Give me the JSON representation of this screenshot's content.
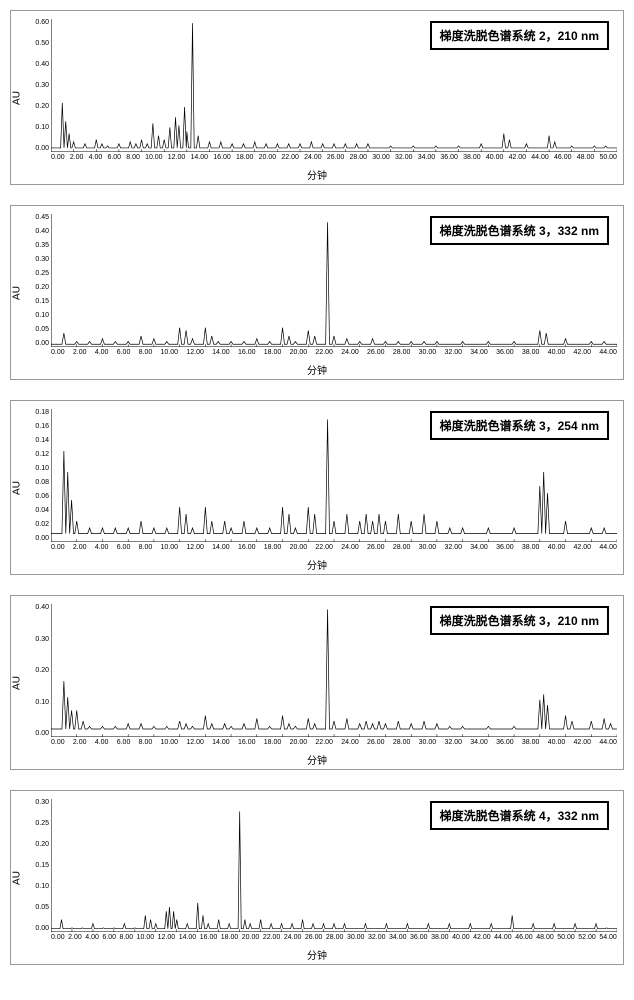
{
  "panels": [
    {
      "legend": "梯度洗脱色谱系统 2，210 nm",
      "y_label": "AU",
      "x_label": "分钟",
      "ylim": [
        0,
        0.65
      ],
      "yticks": [
        "0.00",
        "0.10",
        "0.20",
        "0.30",
        "0.40",
        "0.50",
        "0.60"
      ],
      "xlim": [
        0,
        50
      ],
      "xticks": [
        "0.00",
        "2.00",
        "4.00",
        "6.00",
        "8.00",
        "10.00",
        "12.00",
        "14.00",
        "16.00",
        "18.00",
        "20.00",
        "22.00",
        "24.00",
        "26.00",
        "28.00",
        "30.00",
        "32.00",
        "34.00",
        "36.00",
        "38.00",
        "40.00",
        "42.00",
        "44.00",
        "46.00",
        "48.00",
        "50.00"
      ],
      "peaks": [
        {
          "x": 1.0,
          "h": 0.24
        },
        {
          "x": 1.3,
          "h": 0.15
        },
        {
          "x": 1.6,
          "h": 0.09
        },
        {
          "x": 2.0,
          "h": 0.05
        },
        {
          "x": 3.0,
          "h": 0.04
        },
        {
          "x": 4.0,
          "h": 0.06
        },
        {
          "x": 4.5,
          "h": 0.04
        },
        {
          "x": 5.0,
          "h": 0.03
        },
        {
          "x": 6.0,
          "h": 0.04
        },
        {
          "x": 7.0,
          "h": 0.05
        },
        {
          "x": 7.5,
          "h": 0.04
        },
        {
          "x": 8.0,
          "h": 0.06
        },
        {
          "x": 8.5,
          "h": 0.04
        },
        {
          "x": 9.0,
          "h": 0.14
        },
        {
          "x": 9.5,
          "h": 0.08
        },
        {
          "x": 10.0,
          "h": 0.06
        },
        {
          "x": 10.5,
          "h": 0.12
        },
        {
          "x": 11.0,
          "h": 0.17
        },
        {
          "x": 11.3,
          "h": 0.13
        },
        {
          "x": 11.8,
          "h": 0.22
        },
        {
          "x": 12.0,
          "h": 0.1
        },
        {
          "x": 12.5,
          "h": 0.63
        },
        {
          "x": 13.0,
          "h": 0.08
        },
        {
          "x": 14.0,
          "h": 0.05
        },
        {
          "x": 15.0,
          "h": 0.05
        },
        {
          "x": 16.0,
          "h": 0.04
        },
        {
          "x": 17.0,
          "h": 0.04
        },
        {
          "x": 18.0,
          "h": 0.05
        },
        {
          "x": 19.0,
          "h": 0.04
        },
        {
          "x": 20.0,
          "h": 0.04
        },
        {
          "x": 21.0,
          "h": 0.04
        },
        {
          "x": 22.0,
          "h": 0.04
        },
        {
          "x": 23.0,
          "h": 0.05
        },
        {
          "x": 24.0,
          "h": 0.04
        },
        {
          "x": 25.0,
          "h": 0.04
        },
        {
          "x": 26.0,
          "h": 0.04
        },
        {
          "x": 27.0,
          "h": 0.04
        },
        {
          "x": 28.0,
          "h": 0.04
        },
        {
          "x": 30.0,
          "h": 0.03
        },
        {
          "x": 32.0,
          "h": 0.03
        },
        {
          "x": 34.0,
          "h": 0.03
        },
        {
          "x": 36.0,
          "h": 0.03
        },
        {
          "x": 38.0,
          "h": 0.04
        },
        {
          "x": 40.0,
          "h": 0.09
        },
        {
          "x": 40.5,
          "h": 0.06
        },
        {
          "x": 42.0,
          "h": 0.04
        },
        {
          "x": 44.0,
          "h": 0.08
        },
        {
          "x": 44.5,
          "h": 0.05
        },
        {
          "x": 46.0,
          "h": 0.03
        },
        {
          "x": 48.0,
          "h": 0.03
        },
        {
          "x": 49.0,
          "h": 0.03
        }
      ],
      "baseline": 0.02
    },
    {
      "legend": "梯度洗脱色谱系统 3，332 nm",
      "y_label": "AU",
      "x_label": "分钟",
      "ylim": [
        0,
        0.48
      ],
      "yticks": [
        "0.00",
        "0.05",
        "0.10",
        "0.15",
        "0.20",
        "0.25",
        "0.30",
        "0.35",
        "0.40",
        "0.45"
      ],
      "xlim": [
        0,
        44
      ],
      "xticks": [
        "0.00",
        "2.00",
        "4.00",
        "6.00",
        "8.00",
        "10.00",
        "12.00",
        "14.00",
        "16.00",
        "18.00",
        "20.00",
        "22.00",
        "24.00",
        "26.00",
        "28.00",
        "30.00",
        "32.00",
        "34.00",
        "36.00",
        "38.00",
        "40.00",
        "42.00",
        "44.00"
      ],
      "peaks": [
        {
          "x": 1.0,
          "h": 0.05
        },
        {
          "x": 2.0,
          "h": 0.02
        },
        {
          "x": 3.0,
          "h": 0.02
        },
        {
          "x": 4.0,
          "h": 0.03
        },
        {
          "x": 5.0,
          "h": 0.02
        },
        {
          "x": 6.0,
          "h": 0.02
        },
        {
          "x": 7.0,
          "h": 0.04
        },
        {
          "x": 8.0,
          "h": 0.03
        },
        {
          "x": 9.0,
          "h": 0.02
        },
        {
          "x": 10.0,
          "h": 0.07
        },
        {
          "x": 10.5,
          "h": 0.06
        },
        {
          "x": 11.0,
          "h": 0.03
        },
        {
          "x": 12.0,
          "h": 0.07
        },
        {
          "x": 12.5,
          "h": 0.04
        },
        {
          "x": 13.0,
          "h": 0.02
        },
        {
          "x": 14.0,
          "h": 0.02
        },
        {
          "x": 15.0,
          "h": 0.02
        },
        {
          "x": 16.0,
          "h": 0.03
        },
        {
          "x": 17.0,
          "h": 0.02
        },
        {
          "x": 18.0,
          "h": 0.07
        },
        {
          "x": 18.5,
          "h": 0.04
        },
        {
          "x": 19.0,
          "h": 0.02
        },
        {
          "x": 20.0,
          "h": 0.06
        },
        {
          "x": 20.5,
          "h": 0.04
        },
        {
          "x": 21.5,
          "h": 0.45
        },
        {
          "x": 22.0,
          "h": 0.04
        },
        {
          "x": 23.0,
          "h": 0.03
        },
        {
          "x": 24.0,
          "h": 0.02
        },
        {
          "x": 25.0,
          "h": 0.03
        },
        {
          "x": 26.0,
          "h": 0.02
        },
        {
          "x": 27.0,
          "h": 0.02
        },
        {
          "x": 28.0,
          "h": 0.02
        },
        {
          "x": 29.0,
          "h": 0.02
        },
        {
          "x": 30.0,
          "h": 0.02
        },
        {
          "x": 32.0,
          "h": 0.02
        },
        {
          "x": 34.0,
          "h": 0.02
        },
        {
          "x": 36.0,
          "h": 0.02
        },
        {
          "x": 38.0,
          "h": 0.06
        },
        {
          "x": 38.5,
          "h": 0.05
        },
        {
          "x": 40.0,
          "h": 0.03
        },
        {
          "x": 42.0,
          "h": 0.02
        },
        {
          "x": 43.0,
          "h": 0.02
        }
      ],
      "baseline": 0.01
    },
    {
      "legend": "梯度洗脱色谱系统 3，254 nm",
      "y_label": "AU",
      "x_label": "分钟",
      "ylim": [
        0,
        0.19
      ],
      "yticks": [
        "0.00",
        "0.02",
        "0.04",
        "0.06",
        "0.08",
        "0.10",
        "0.12",
        "0.14",
        "0.16",
        "0.18"
      ],
      "xlim": [
        0,
        44
      ],
      "xticks": [
        "0.00",
        "2.00",
        "4.00",
        "6.00",
        "8.00",
        "10.00",
        "12.00",
        "14.00",
        "16.00",
        "18.00",
        "20.00",
        "22.00",
        "24.00",
        "26.00",
        "28.00",
        "30.00",
        "32.00",
        "34.00",
        "36.00",
        "38.00",
        "40.00",
        "42.00",
        "44.00"
      ],
      "peaks": [
        {
          "x": 1.0,
          "h": 0.13
        },
        {
          "x": 1.3,
          "h": 0.1
        },
        {
          "x": 1.6,
          "h": 0.06
        },
        {
          "x": 2.0,
          "h": 0.03
        },
        {
          "x": 3.0,
          "h": 0.02
        },
        {
          "x": 4.0,
          "h": 0.02
        },
        {
          "x": 5.0,
          "h": 0.02
        },
        {
          "x": 6.0,
          "h": 0.02
        },
        {
          "x": 7.0,
          "h": 0.03
        },
        {
          "x": 8.0,
          "h": 0.02
        },
        {
          "x": 9.0,
          "h": 0.02
        },
        {
          "x": 10.0,
          "h": 0.05
        },
        {
          "x": 10.5,
          "h": 0.04
        },
        {
          "x": 11.0,
          "h": 0.02
        },
        {
          "x": 12.0,
          "h": 0.05
        },
        {
          "x": 12.5,
          "h": 0.03
        },
        {
          "x": 13.5,
          "h": 0.03
        },
        {
          "x": 14.0,
          "h": 0.02
        },
        {
          "x": 15.0,
          "h": 0.03
        },
        {
          "x": 16.0,
          "h": 0.02
        },
        {
          "x": 17.0,
          "h": 0.02
        },
        {
          "x": 18.0,
          "h": 0.05
        },
        {
          "x": 18.5,
          "h": 0.04
        },
        {
          "x": 19.0,
          "h": 0.02
        },
        {
          "x": 20.0,
          "h": 0.05
        },
        {
          "x": 20.5,
          "h": 0.04
        },
        {
          "x": 21.5,
          "h": 0.175
        },
        {
          "x": 22.0,
          "h": 0.03
        },
        {
          "x": 23.0,
          "h": 0.04
        },
        {
          "x": 24.0,
          "h": 0.03
        },
        {
          "x": 24.5,
          "h": 0.04
        },
        {
          "x": 25.0,
          "h": 0.03
        },
        {
          "x": 25.5,
          "h": 0.04
        },
        {
          "x": 26.0,
          "h": 0.03
        },
        {
          "x": 27.0,
          "h": 0.04
        },
        {
          "x": 28.0,
          "h": 0.03
        },
        {
          "x": 29.0,
          "h": 0.04
        },
        {
          "x": 30.0,
          "h": 0.03
        },
        {
          "x": 31.0,
          "h": 0.02
        },
        {
          "x": 32.0,
          "h": 0.02
        },
        {
          "x": 34.0,
          "h": 0.02
        },
        {
          "x": 36.0,
          "h": 0.02
        },
        {
          "x": 38.0,
          "h": 0.08
        },
        {
          "x": 38.3,
          "h": 0.1
        },
        {
          "x": 38.6,
          "h": 0.07
        },
        {
          "x": 40.0,
          "h": 0.03
        },
        {
          "x": 42.0,
          "h": 0.02
        },
        {
          "x": 43.0,
          "h": 0.02
        }
      ],
      "baseline": 0.012
    },
    {
      "legend": "梯度洗脱色谱系统 3，210 nm",
      "y_label": "AU",
      "x_label": "分钟",
      "ylim": [
        0,
        0.5
      ],
      "yticks": [
        "0.00",
        "0.10",
        "0.20",
        "0.30",
        "0.40"
      ],
      "xlim": [
        0,
        44
      ],
      "xticks": [
        "0.00",
        "2.00",
        "4.00",
        "6.00",
        "8.00",
        "10.00",
        "12.00",
        "14.00",
        "16.00",
        "18.00",
        "20.00",
        "22.00",
        "24.00",
        "26.00",
        "28.00",
        "30.00",
        "32.00",
        "34.00",
        "36.00",
        "38.00",
        "40.00",
        "42.00",
        "44.00"
      ],
      "peaks": [
        {
          "x": 1.0,
          "h": 0.21
        },
        {
          "x": 1.3,
          "h": 0.15
        },
        {
          "x": 1.6,
          "h": 0.1
        },
        {
          "x": 2.0,
          "h": 0.1
        },
        {
          "x": 2.5,
          "h": 0.06
        },
        {
          "x": 3.0,
          "h": 0.04
        },
        {
          "x": 4.0,
          "h": 0.04
        },
        {
          "x": 5.0,
          "h": 0.04
        },
        {
          "x": 6.0,
          "h": 0.05
        },
        {
          "x": 7.0,
          "h": 0.05
        },
        {
          "x": 8.0,
          "h": 0.04
        },
        {
          "x": 9.0,
          "h": 0.04
        },
        {
          "x": 10.0,
          "h": 0.06
        },
        {
          "x": 10.5,
          "h": 0.05
        },
        {
          "x": 11.0,
          "h": 0.04
        },
        {
          "x": 12.0,
          "h": 0.08
        },
        {
          "x": 12.5,
          "h": 0.05
        },
        {
          "x": 13.5,
          "h": 0.05
        },
        {
          "x": 14.0,
          "h": 0.04
        },
        {
          "x": 15.0,
          "h": 0.05
        },
        {
          "x": 16.0,
          "h": 0.07
        },
        {
          "x": 17.0,
          "h": 0.04
        },
        {
          "x": 18.0,
          "h": 0.08
        },
        {
          "x": 18.5,
          "h": 0.05
        },
        {
          "x": 19.0,
          "h": 0.04
        },
        {
          "x": 20.0,
          "h": 0.07
        },
        {
          "x": 20.5,
          "h": 0.05
        },
        {
          "x": 21.5,
          "h": 0.48
        },
        {
          "x": 22.0,
          "h": 0.06
        },
        {
          "x": 23.0,
          "h": 0.07
        },
        {
          "x": 24.0,
          "h": 0.05
        },
        {
          "x": 24.5,
          "h": 0.06
        },
        {
          "x": 25.0,
          "h": 0.05
        },
        {
          "x": 25.5,
          "h": 0.06
        },
        {
          "x": 26.0,
          "h": 0.05
        },
        {
          "x": 27.0,
          "h": 0.06
        },
        {
          "x": 28.0,
          "h": 0.05
        },
        {
          "x": 29.0,
          "h": 0.06
        },
        {
          "x": 30.0,
          "h": 0.05
        },
        {
          "x": 31.0,
          "h": 0.04
        },
        {
          "x": 32.0,
          "h": 0.04
        },
        {
          "x": 34.0,
          "h": 0.04
        },
        {
          "x": 36.0,
          "h": 0.04
        },
        {
          "x": 38.0,
          "h": 0.14
        },
        {
          "x": 38.3,
          "h": 0.16
        },
        {
          "x": 38.6,
          "h": 0.12
        },
        {
          "x": 40.0,
          "h": 0.08
        },
        {
          "x": 40.5,
          "h": 0.06
        },
        {
          "x": 42.0,
          "h": 0.06
        },
        {
          "x": 43.0,
          "h": 0.07
        },
        {
          "x": 43.5,
          "h": 0.05
        }
      ],
      "baseline": 0.03
    },
    {
      "legend": "梯度洗脱色谱系统 4，332 nm",
      "y_label": "AU",
      "x_label": "分钟",
      "ylim": [
        0,
        0.32
      ],
      "yticks": [
        "0.00",
        "0.05",
        "0.10",
        "0.15",
        "0.20",
        "0.25",
        "0.30"
      ],
      "xlim": [
        0,
        54
      ],
      "xticks": [
        "0.00",
        "2.00",
        "4.00",
        "6.00",
        "8.00",
        "10.00",
        "12.00",
        "14.00",
        "16.00",
        "18.00",
        "20.00",
        "22.00",
        "24.00",
        "26.00",
        "28.00",
        "30.00",
        "32.00",
        "34.00",
        "36.00",
        "38.00",
        "40.00",
        "42.00",
        "44.00",
        "46.00",
        "48.00",
        "50.00",
        "52.00",
        "54.00"
      ],
      "peaks": [
        {
          "x": 1.0,
          "h": 0.03
        },
        {
          "x": 2.0,
          "h": 0.01
        },
        {
          "x": 3.0,
          "h": 0.01
        },
        {
          "x": 4.0,
          "h": 0.02
        },
        {
          "x": 5.0,
          "h": 0.01
        },
        {
          "x": 6.0,
          "h": 0.01
        },
        {
          "x": 7.0,
          "h": 0.02
        },
        {
          "x": 8.0,
          "h": 0.01
        },
        {
          "x": 9.0,
          "h": 0.04
        },
        {
          "x": 9.5,
          "h": 0.03
        },
        {
          "x": 10.0,
          "h": 0.02
        },
        {
          "x": 11.0,
          "h": 0.05
        },
        {
          "x": 11.3,
          "h": 0.06
        },
        {
          "x": 11.7,
          "h": 0.05
        },
        {
          "x": 12.0,
          "h": 0.03
        },
        {
          "x": 13.0,
          "h": 0.02
        },
        {
          "x": 14.0,
          "h": 0.07
        },
        {
          "x": 14.5,
          "h": 0.04
        },
        {
          "x": 15.0,
          "h": 0.02
        },
        {
          "x": 16.0,
          "h": 0.03
        },
        {
          "x": 17.0,
          "h": 0.02
        },
        {
          "x": 18.0,
          "h": 0.29
        },
        {
          "x": 18.5,
          "h": 0.03
        },
        {
          "x": 19.0,
          "h": 0.02
        },
        {
          "x": 20.0,
          "h": 0.03
        },
        {
          "x": 21.0,
          "h": 0.02
        },
        {
          "x": 22.0,
          "h": 0.02
        },
        {
          "x": 23.0,
          "h": 0.02
        },
        {
          "x": 24.0,
          "h": 0.03
        },
        {
          "x": 25.0,
          "h": 0.02
        },
        {
          "x": 26.0,
          "h": 0.02
        },
        {
          "x": 27.0,
          "h": 0.02
        },
        {
          "x": 28.0,
          "h": 0.02
        },
        {
          "x": 30.0,
          "h": 0.02
        },
        {
          "x": 32.0,
          "h": 0.02
        },
        {
          "x": 34.0,
          "h": 0.02
        },
        {
          "x": 36.0,
          "h": 0.02
        },
        {
          "x": 38.0,
          "h": 0.02
        },
        {
          "x": 40.0,
          "h": 0.02
        },
        {
          "x": 42.0,
          "h": 0.02
        },
        {
          "x": 44.0,
          "h": 0.04
        },
        {
          "x": 46.0,
          "h": 0.02
        },
        {
          "x": 48.0,
          "h": 0.02
        },
        {
          "x": 50.0,
          "h": 0.02
        },
        {
          "x": 52.0,
          "h": 0.02
        },
        {
          "x": 53.0,
          "h": 0.01
        }
      ],
      "baseline": 0.008
    }
  ],
  "colors": {
    "trace": "#000000",
    "border": "#999999",
    "background": "#ffffff",
    "legend_border": "#000000"
  }
}
